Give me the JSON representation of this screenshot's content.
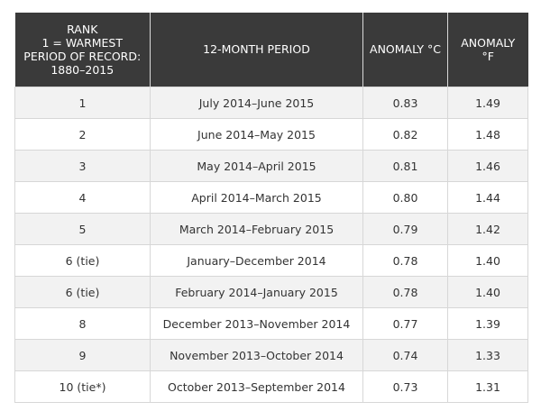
{
  "table": {
    "headers": {
      "rank_lines": [
        "RANK",
        "1 = WARMEST",
        "PERIOD OF RECORD:",
        "1880–2015"
      ],
      "period": "12-MONTH PERIOD",
      "anomaly_c": "ANOMALY °C",
      "anomaly_f": "ANOMALY °F"
    },
    "rows": [
      {
        "rank": "1",
        "period": "July 2014–June 2015",
        "c": "0.83",
        "f": "1.49"
      },
      {
        "rank": "2",
        "period": "June 2014–May 2015",
        "c": "0.82",
        "f": "1.48"
      },
      {
        "rank": "3",
        "period": "May 2014–April 2015",
        "c": "0.81",
        "f": "1.46"
      },
      {
        "rank": "4",
        "period": "April 2014–March 2015",
        "c": "0.80",
        "f": "1.44"
      },
      {
        "rank": "5",
        "period": "March 2014–February 2015",
        "c": "0.79",
        "f": "1.42"
      },
      {
        "rank": "6 (tie)",
        "period": "January–December 2014",
        "c": "0.78",
        "f": "1.40"
      },
      {
        "rank": "6 (tie)",
        "period": "February 2014–January 2015",
        "c": "0.78",
        "f": "1.40"
      },
      {
        "rank": "8",
        "period": "December 2013–November 2014",
        "c": "0.77",
        "f": "1.39"
      },
      {
        "rank": "9",
        "period": "November 2013–October 2014",
        "c": "0.74",
        "f": "1.33"
      },
      {
        "rank": "10 (tie*)",
        "period": "October 2013–September 2014",
        "c": "0.73",
        "f": "1.31"
      }
    ]
  }
}
